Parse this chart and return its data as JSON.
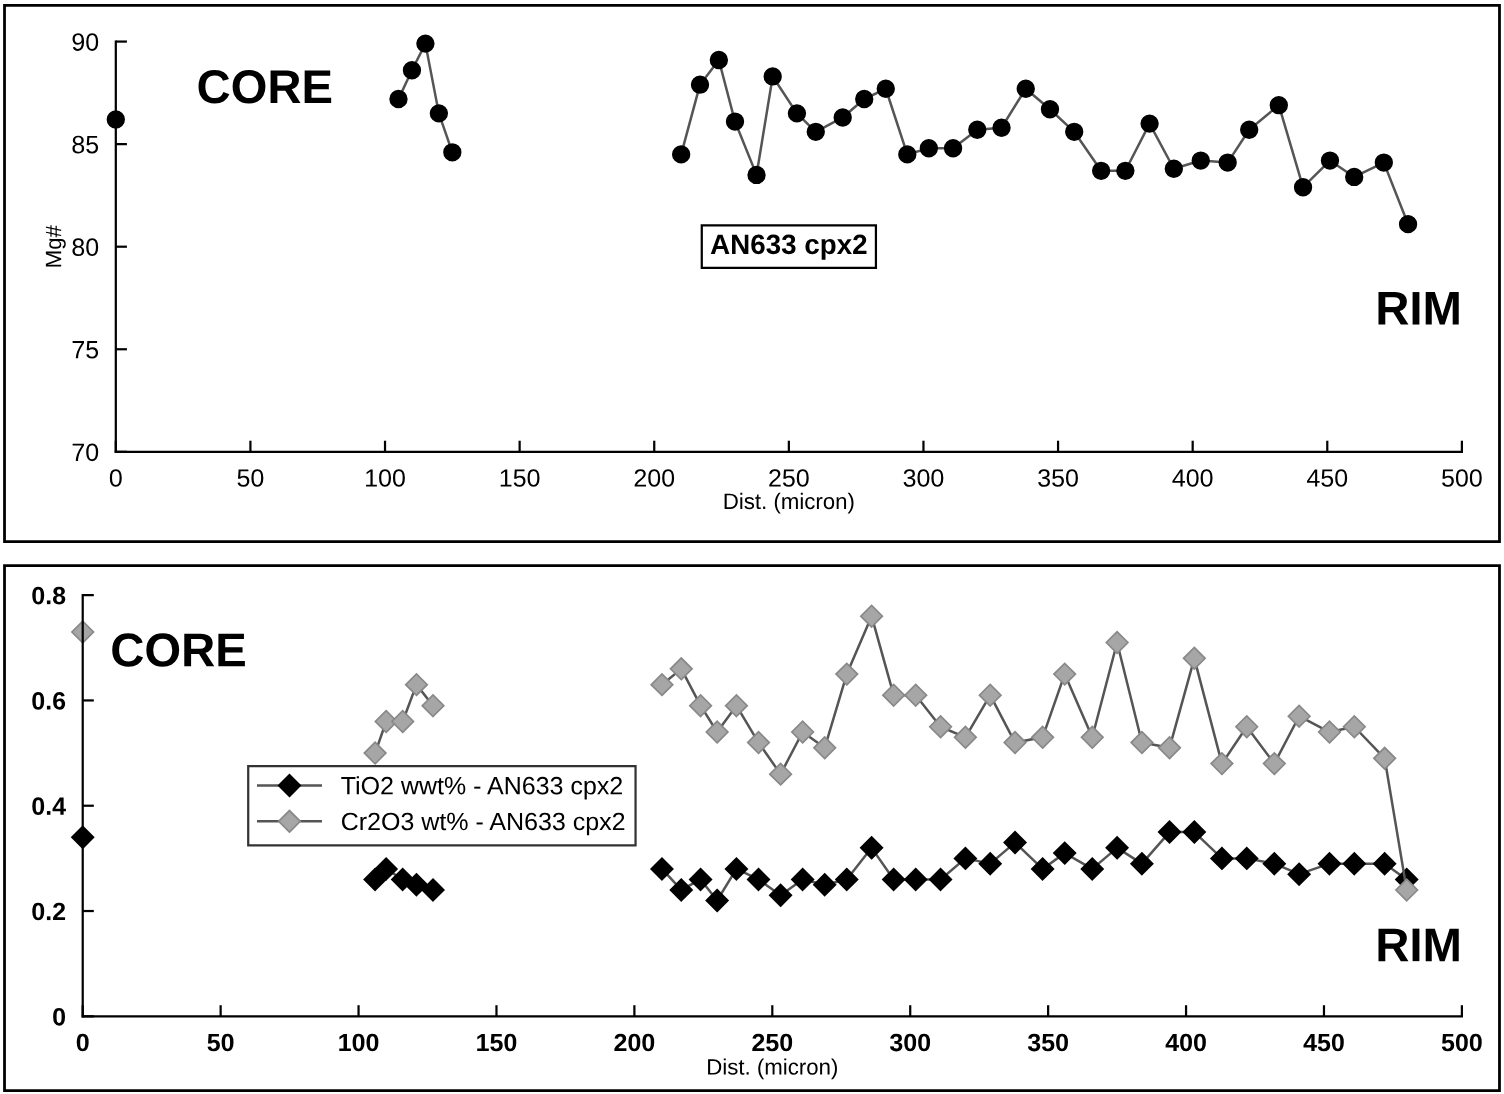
{
  "chart_data": [
    {
      "type": "line",
      "xlabel": "Dist. (micron)",
      "ylabel": "Mg#",
      "xlim": [
        0,
        500
      ],
      "xticks": [
        0,
        50,
        100,
        150,
        200,
        250,
        300,
        350,
        400,
        450,
        500
      ],
      "ylim": [
        70,
        90
      ],
      "yticks": [
        70,
        75,
        80,
        85,
        90
      ],
      "grid": false,
      "legend": false,
      "marker": "circle",
      "line_style": "solid",
      "annotations": [
        "CORE",
        "AN633 cpx2",
        "RIM"
      ],
      "series": [
        {
          "color": "#000000",
          "x": [
            0,
            null,
            105,
            110,
            115,
            120,
            125,
            null,
            210,
            217,
            224,
            230,
            238,
            244,
            253,
            260,
            270,
            278,
            286,
            294,
            302,
            311,
            320,
            329,
            338,
            347,
            356,
            366,
            375,
            384,
            393,
            403,
            413,
            421,
            432,
            441,
            451,
            460,
            471,
            480
          ],
          "values": [
            86.2,
            null,
            87.2,
            88.6,
            89.9,
            86.5,
            84.6,
            null,
            84.5,
            87.9,
            89.1,
            86.1,
            83.5,
            88.3,
            86.5,
            85.6,
            86.3,
            87.2,
            87.7,
            84.5,
            84.8,
            84.8,
            85.7,
            85.8,
            87.7,
            86.7,
            85.6,
            83.7,
            83.7,
            86.0,
            83.8,
            84.2,
            84.1,
            85.7,
            86.9,
            82.9,
            84.2,
            83.4,
            84.1,
            81.1
          ]
        }
      ]
    },
    {
      "type": "line",
      "xlabel": "Dist. (micron)",
      "xlim": [
        0,
        500
      ],
      "xticks": [
        0,
        50,
        100,
        150,
        200,
        250,
        300,
        350,
        400,
        450,
        500
      ],
      "ylim": [
        0,
        0.8
      ],
      "yticks": [
        0,
        0.2,
        0.4,
        0.6,
        0.8
      ],
      "grid": false,
      "legend": "left",
      "marker": "diamond",
      "line_style": "solid",
      "annotations": [
        "CORE",
        "RIM"
      ],
      "series": [
        {
          "name": "TiO2 wwt% - AN633 cpx2",
          "color": "#000000",
          "x": [
            0,
            null,
            106,
            110,
            116,
            121,
            127,
            null,
            210,
            217,
            224,
            230,
            237,
            245,
            253,
            261,
            269,
            277,
            286,
            294,
            302,
            311,
            320,
            329,
            338,
            348,
            356,
            366,
            375,
            384,
            394,
            403,
            413,
            422,
            432,
            441,
            452,
            461,
            472,
            480
          ],
          "values": [
            0.34,
            null,
            0.26,
            0.28,
            0.26,
            0.25,
            0.24,
            null,
            0.28,
            0.24,
            0.26,
            0.22,
            0.28,
            0.26,
            0.23,
            0.26,
            0.25,
            0.26,
            0.32,
            0.26,
            0.26,
            0.26,
            0.3,
            0.29,
            0.33,
            0.28,
            0.31,
            0.28,
            0.32,
            0.29,
            0.35,
            0.35,
            0.3,
            0.3,
            0.29,
            0.27,
            0.29,
            0.29,
            0.29,
            0.26
          ]
        },
        {
          "name": "Cr2O3 wt% - AN633 cpx2",
          "color": "#a6a6a6",
          "x": [
            0,
            null,
            106,
            110,
            116,
            121,
            127,
            null,
            210,
            217,
            224,
            230,
            237,
            245,
            253,
            261,
            269,
            277,
            286,
            294,
            302,
            311,
            320,
            329,
            338,
            348,
            356,
            366,
            375,
            384,
            394,
            403,
            413,
            422,
            432,
            441,
            452,
            461,
            472,
            480
          ],
          "values": [
            0.73,
            null,
            0.5,
            0.56,
            0.56,
            0.63,
            0.59,
            null,
            0.63,
            0.66,
            0.59,
            0.54,
            0.59,
            0.52,
            0.46,
            0.54,
            0.51,
            0.65,
            0.76,
            0.61,
            0.61,
            0.55,
            0.53,
            0.61,
            0.52,
            0.53,
            0.65,
            0.53,
            0.71,
            0.52,
            0.51,
            0.68,
            0.48,
            0.55,
            0.48,
            0.57,
            0.54,
            0.55,
            0.49,
            0.24
          ]
        }
      ]
    }
  ]
}
